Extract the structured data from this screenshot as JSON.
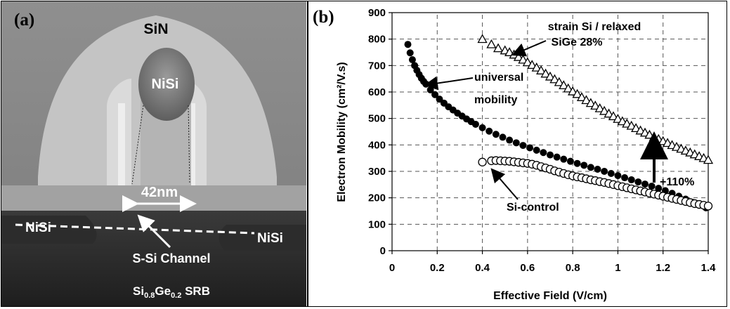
{
  "panel_a": {
    "letter": "(a)",
    "labels": {
      "sin": "SiN",
      "nisi_gate": "NiSi",
      "gate_length": "42nm",
      "nisi_left": "NiSi",
      "nisi_right": "NiSi",
      "channel": "S-Si Channel",
      "substrate_si": "Si",
      "substrate_si_sub": "0.8",
      "substrate_ge": "Ge",
      "substrate_ge_sub": "0.2",
      "substrate_rest": " SRB"
    }
  },
  "chart_data": {
    "panel_letter": "(b)",
    "type": "scatter",
    "xlabel": "Effective Field (V/cm)",
    "ylabel": "Electron Mobility (cm²/V.s)",
    "xlim": [
      0,
      1.4
    ],
    "ylim": [
      0,
      900
    ],
    "xticks": [
      "0",
      "0.2",
      "0.4",
      "0.6",
      "0.8",
      "1",
      "1.2",
      "1.4"
    ],
    "yticks": [
      "0",
      "100",
      "200",
      "300",
      "400",
      "500",
      "600",
      "700",
      "800",
      "900"
    ],
    "grid": true,
    "grid_style": "dashed",
    "series": [
      {
        "name": "strain Si / relaxed SiGe 28%",
        "marker": "open-triangle",
        "x": [
          0.4,
          0.44,
          0.47,
          0.5,
          0.52,
          0.54,
          0.56,
          0.58,
          0.6,
          0.62,
          0.64,
          0.66,
          0.68,
          0.7,
          0.72,
          0.74,
          0.76,
          0.78,
          0.8,
          0.82,
          0.84,
          0.86,
          0.88,
          0.9,
          0.92,
          0.94,
          0.96,
          0.98,
          1.0,
          1.02,
          1.04,
          1.06,
          1.08,
          1.1,
          1.12,
          1.14,
          1.16,
          1.18,
          1.2,
          1.22,
          1.24,
          1.26,
          1.28,
          1.3,
          1.32,
          1.34,
          1.36,
          1.38,
          1.4
        ],
        "y": [
          800,
          780,
          765,
          757,
          750,
          741,
          732,
          722,
          712,
          702,
          692,
          681,
          669,
          658,
          648,
          637,
          625,
          613,
          602,
          592,
          580,
          569,
          558,
          548,
          538,
          528,
          518,
          508,
          498,
          489,
          480,
          472,
          463,
          454,
          446,
          438,
          430,
          422,
          414,
          407,
          399,
          392,
          385,
          378,
          371,
          364,
          357,
          350,
          343
        ]
      },
      {
        "name": "universal mobility",
        "marker": "filled-circle",
        "x": [
          0.07,
          0.08,
          0.09,
          0.1,
          0.11,
          0.12,
          0.13,
          0.14,
          0.15,
          0.17,
          0.19,
          0.21,
          0.23,
          0.25,
          0.27,
          0.29,
          0.31,
          0.33,
          0.35,
          0.37,
          0.4,
          0.43,
          0.46,
          0.49,
          0.52,
          0.55,
          0.58,
          0.61,
          0.64,
          0.67,
          0.7,
          0.73,
          0.76,
          0.79,
          0.82,
          0.85,
          0.88,
          0.91,
          0.94,
          0.97,
          1.0,
          1.03,
          1.06,
          1.09,
          1.12,
          1.15,
          1.18,
          1.21,
          1.24,
          1.27,
          1.3,
          1.33,
          1.36,
          1.39
        ],
        "y": [
          780,
          748,
          722,
          700,
          682,
          666,
          652,
          640,
          630,
          608,
          590,
          573,
          558,
          544,
          532,
          520,
          509,
          498,
          488,
          478,
          465,
          452,
          440,
          429,
          418,
          408,
          398,
          389,
          380,
          371,
          362,
          354,
          346,
          338,
          330,
          323,
          315,
          308,
          300,
          292,
          284,
          276,
          268,
          260,
          252,
          244,
          236,
          227,
          217,
          206,
          195,
          183,
          172,
          162
        ]
      },
      {
        "name": "Si-control",
        "marker": "open-circle",
        "x": [
          0.4,
          0.44,
          0.46,
          0.48,
          0.5,
          0.52,
          0.54,
          0.56,
          0.58,
          0.6,
          0.62,
          0.64,
          0.66,
          0.68,
          0.7,
          0.72,
          0.74,
          0.76,
          0.78,
          0.8,
          0.82,
          0.84,
          0.86,
          0.88,
          0.9,
          0.92,
          0.94,
          0.96,
          0.98,
          1.0,
          1.02,
          1.04,
          1.06,
          1.08,
          1.1,
          1.12,
          1.14,
          1.16,
          1.18,
          1.2,
          1.22,
          1.24,
          1.26,
          1.28,
          1.3,
          1.32,
          1.34,
          1.36,
          1.38,
          1.4
        ],
        "y": [
          335,
          340,
          341,
          340,
          339,
          338,
          336,
          334,
          332,
          330,
          327,
          323,
          318,
          313,
          308,
          302,
          297,
          292,
          287,
          283,
          279,
          276,
          272,
          268,
          265,
          261,
          258,
          254,
          250,
          246,
          242,
          238,
          234,
          230,
          226,
          222,
          218,
          214,
          210,
          206,
          202,
          198,
          194,
          190,
          186,
          182,
          178,
          175,
          172,
          169
        ]
      }
    ],
    "annotations": {
      "strain_line1": "strain Si / relaxed",
      "strain_line2": "SiGe 28%",
      "universal_line1": "universal",
      "universal_line2": "mobility",
      "si_control": "Si-control",
      "improvement": "+110%"
    }
  }
}
